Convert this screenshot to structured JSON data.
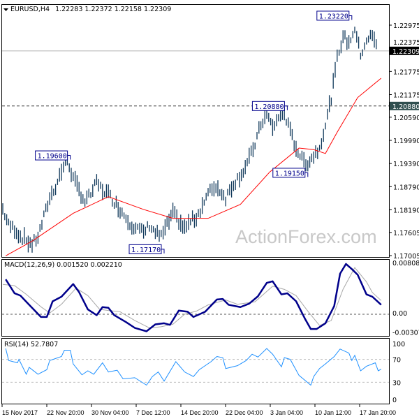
{
  "header": {
    "symbol": "EURUSD,H4",
    "ohlc": "1.22283 1.22372 1.22158 1.22309"
  },
  "watermark": "ActionForex.com",
  "colors": {
    "bars": "#123a5c",
    "ma": "#ff0000",
    "macd": "#00008b",
    "signal": "#a8a8a8",
    "rsi": "#1e90ff",
    "label_box": "#00008b"
  },
  "chart_data": [
    {
      "type": "bar",
      "title": "EURUSD,H4",
      "price_axis_ticks": [
        "1.22975",
        "1.22375",
        "1.21775",
        "1.21175",
        "1.20590",
        "1.19990",
        "1.19390",
        "1.18790",
        "1.18190",
        "1.17605",
        "1.17005"
      ],
      "ylim": [
        1.17005,
        1.22975
      ],
      "current_price": "1.22309",
      "level_line": "1.20880",
      "annotations": [
        {
          "text": "1.19600",
          "bar": 23,
          "price": 1.196
        },
        {
          "text": "1.17170",
          "bar": 55,
          "price": 1.1717
        },
        {
          "text": "1.20880",
          "bar": 97,
          "price": 1.2088
        },
        {
          "text": "1.19150",
          "bar": 104,
          "price": 1.1915
        },
        {
          "text": "1.23220",
          "bar": 119,
          "price": 1.2322
        }
      ],
      "close": [
        1.182,
        1.178,
        1.177,
        1.175,
        1.174,
        1.173,
        1.175,
        1.18,
        1.185,
        1.188,
        1.192,
        1.195,
        1.19,
        1.187,
        1.184,
        1.186,
        1.189,
        1.187,
        1.186,
        1.184,
        1.182,
        1.18,
        1.178,
        1.177,
        1.176,
        1.178,
        1.176,
        1.175,
        1.178,
        1.181,
        1.179,
        1.177,
        1.179,
        1.18,
        1.183,
        1.186,
        1.188,
        1.187,
        1.185,
        1.188,
        1.19,
        1.192,
        1.195,
        1.199,
        1.204,
        1.207,
        1.203,
        1.206,
        1.207,
        1.202,
        1.198,
        1.195,
        1.194,
        1.196,
        1.198,
        1.204,
        1.211,
        1.221,
        1.227,
        1.225,
        1.229,
        1.222,
        1.226,
        1.227,
        1.223
      ],
      "ma": [
        [
          1,
          1.17
        ],
        [
          10,
          1.1738
        ],
        [
          24,
          1.181
        ],
        [
          36,
          1.1853
        ],
        [
          48,
          1.182
        ],
        [
          58,
          1.1797
        ],
        [
          70,
          1.1797
        ],
        [
          81,
          1.1833
        ],
        [
          91,
          1.1917
        ],
        [
          101,
          1.1979
        ],
        [
          106,
          1.1975
        ],
        [
          110,
          1.1965
        ],
        [
          114,
          1.202
        ],
        [
          121,
          1.211
        ],
        [
          129,
          1.216
        ]
      ],
      "xlabels": [
        "15 Nov 2017",
        "22 Nov 20:00",
        "30 Nov 04:00",
        "7 Dec 12:00",
        "14 Dec 20:00",
        "22 Dec 04:00",
        "3 Jan 04:00",
        "10 Jan 12:00",
        "17 Jan 20:00"
      ]
    },
    {
      "type": "line",
      "title": "MACD(12,26,9) 0.001520 0.002210",
      "ticks": [
        "0.00808",
        "0.00",
        "-0.003078"
      ],
      "ylim": [
        -0.0033,
        0.0085
      ],
      "macd": [
        [
          1,
          0.0056
        ],
        [
          4,
          0.00337
        ],
        [
          6,
          0.003
        ],
        [
          9,
          0.00152
        ],
        [
          13,
          -0.00044
        ],
        [
          15,
          -0.00044
        ],
        [
          17,
          0.00208
        ],
        [
          20,
          0.00282
        ],
        [
          24,
          0.00485
        ],
        [
          26,
          0.00356
        ],
        [
          29,
          0.00078
        ],
        [
          32,
          -0.00015
        ],
        [
          34,
          0.00115
        ],
        [
          36,
          0.00104
        ],
        [
          38,
          -0.00015
        ],
        [
          42,
          -0.00126
        ],
        [
          45,
          -0.00219
        ],
        [
          49,
          -0.00274
        ],
        [
          52,
          -0.00163
        ],
        [
          55,
          -0.00145
        ],
        [
          57,
          -0.0017
        ],
        [
          60,
          0.00059
        ],
        [
          63,
          0.00041
        ],
        [
          65,
          -0.00044
        ],
        [
          69,
          0.00041
        ],
        [
          73,
          0.00237
        ],
        [
          75,
          0.00245
        ],
        [
          77,
          0.00152
        ],
        [
          81,
          0.00115
        ],
        [
          84,
          0.0017
        ],
        [
          87,
          0.00289
        ],
        [
          90,
          0.00504
        ],
        [
          92,
          0.0053
        ],
        [
          95,
          0.00319
        ],
        [
          97,
          0.00337
        ],
        [
          100,
          0.00209
        ],
        [
          103,
          -0.0007
        ],
        [
          105,
          -0.00237
        ],
        [
          107,
          -0.00237
        ],
        [
          110,
          -0.00145
        ],
        [
          113,
          0.00133
        ],
        [
          115,
          0.00652
        ],
        [
          117,
          0.00808
        ],
        [
          119,
          0.00726
        ],
        [
          121,
          0.00634
        ],
        [
          124,
          0.00319
        ],
        [
          126,
          0.00282
        ],
        [
          129,
          0.00152
        ]
      ],
      "signal": [
        [
          0,
          0.0048
        ],
        [
          4,
          0.0046
        ],
        [
          8,
          0.0032
        ],
        [
          13,
          0.0012
        ],
        [
          16,
          0.0002
        ],
        [
          20,
          0.0016
        ],
        [
          25,
          0.0042
        ],
        [
          29,
          0.003
        ],
        [
          33,
          0.0008
        ],
        [
          36,
          0.0006
        ],
        [
          40,
          0.0004
        ],
        [
          45,
          -0.001
        ],
        [
          50,
          -0.0022
        ],
        [
          54,
          -0.002
        ],
        [
          58,
          -0.0016
        ],
        [
          62,
          0.0
        ],
        [
          66,
          0.0005
        ],
        [
          70,
          0.0015
        ],
        [
          76,
          0.0023
        ],
        [
          80,
          0.0016
        ],
        [
          86,
          0.002
        ],
        [
          92,
          0.0045
        ],
        [
          96,
          0.004
        ],
        [
          100,
          0.003
        ],
        [
          104,
          0.0005
        ],
        [
          108,
          -0.0018
        ],
        [
          112,
          -0.001
        ],
        [
          116,
          0.004
        ],
        [
          120,
          0.0075
        ],
        [
          124,
          0.0052
        ],
        [
          126,
          0.0035
        ],
        [
          129,
          0.00221
        ]
      ]
    },
    {
      "type": "line",
      "title": "RSI(14) 52.7807",
      "ticks": [
        "100",
        "70",
        "30",
        "0"
      ],
      "ylim": [
        0,
        100
      ],
      "rsi": [
        [
          1,
          89
        ],
        [
          2,
          68
        ],
        [
          5,
          64
        ],
        [
          5.5,
          70
        ],
        [
          8,
          44
        ],
        [
          9,
          56
        ],
        [
          12,
          44
        ],
        [
          15,
          52
        ],
        [
          16,
          68
        ],
        [
          20,
          75
        ],
        [
          21,
          86
        ],
        [
          23,
          86
        ],
        [
          24,
          62
        ],
        [
          27,
          43
        ],
        [
          29,
          50
        ],
        [
          31,
          44
        ],
        [
          34,
          64
        ],
        [
          36,
          48
        ],
        [
          39,
          51
        ],
        [
          41,
          36
        ],
        [
          45,
          38
        ],
        [
          49,
          25
        ],
        [
          51,
          40
        ],
        [
          53,
          48
        ],
        [
          55,
          32
        ],
        [
          59,
          66
        ],
        [
          62,
          48
        ],
        [
          65,
          40
        ],
        [
          67,
          52
        ],
        [
          71,
          66
        ],
        [
          73,
          75
        ],
        [
          75,
          73
        ],
        [
          76,
          54
        ],
        [
          80,
          59
        ],
        [
          83,
          68
        ],
        [
          85,
          79
        ],
        [
          87,
          74
        ],
        [
          90,
          89
        ],
        [
          92,
          79
        ],
        [
          95,
          57
        ],
        [
          96,
          73
        ],
        [
          98,
          70
        ],
        [
          101,
          42
        ],
        [
          105,
          25
        ],
        [
          106,
          40
        ],
        [
          108,
          54
        ],
        [
          110,
          62
        ],
        [
          113,
          75
        ],
        [
          115,
          88
        ],
        [
          118,
          81
        ],
        [
          119,
          68
        ],
        [
          120,
          77
        ],
        [
          122,
          50
        ],
        [
          124,
          58
        ],
        [
          127,
          64
        ],
        [
          128,
          50
        ],
        [
          129,
          52.78
        ]
      ]
    }
  ]
}
